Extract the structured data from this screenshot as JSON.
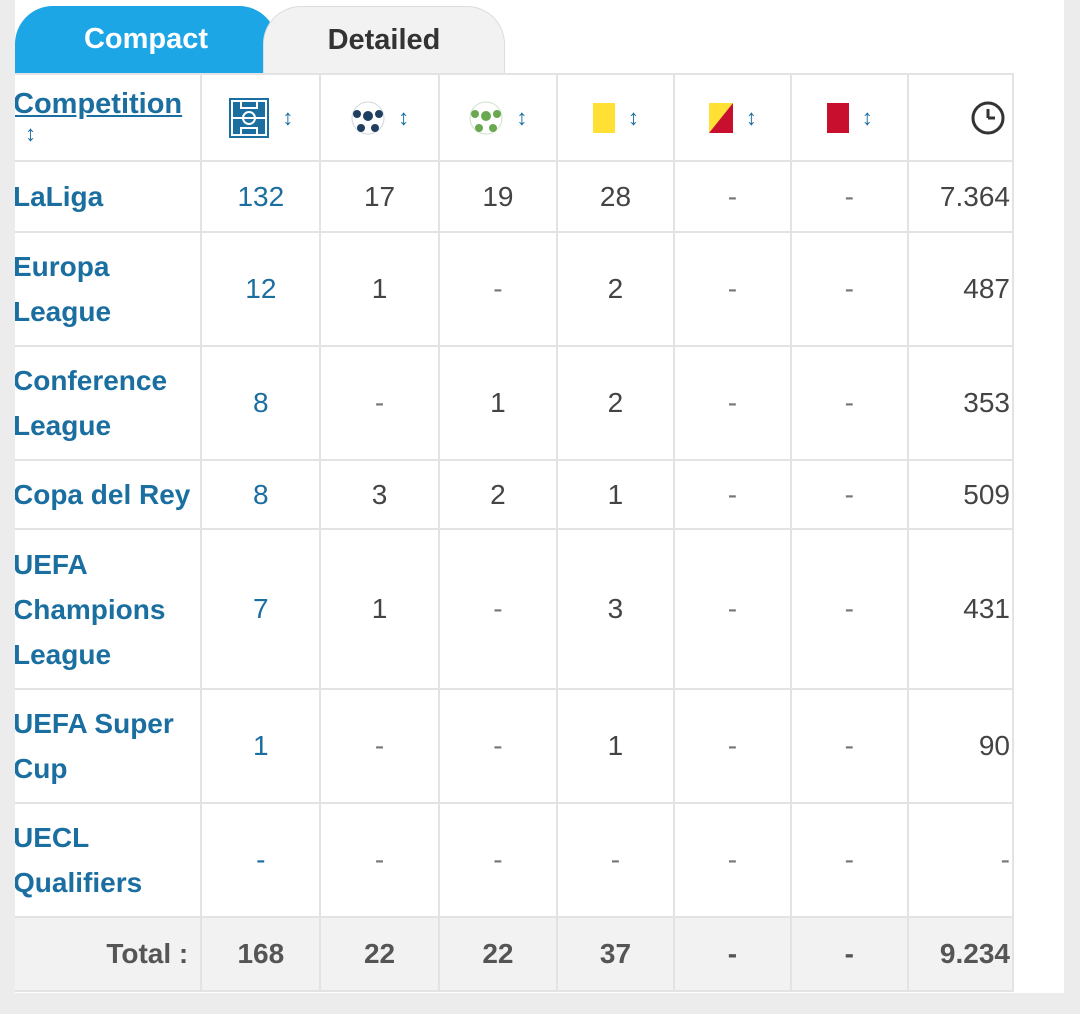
{
  "tabs": {
    "compact": "Compact",
    "detailed": "Detailed"
  },
  "header": {
    "competition": "Competition",
    "sort_glyph": "↕",
    "columns": [
      {
        "icon": "pitch-appearances-icon"
      },
      {
        "icon": "goals-ball-icon"
      },
      {
        "icon": "assists-ball-icon"
      },
      {
        "icon": "yellow-card-icon"
      },
      {
        "icon": "second-yellow-card-icon"
      },
      {
        "icon": "red-card-icon"
      },
      {
        "icon": "clock-minutes-icon"
      }
    ]
  },
  "rows": [
    {
      "competition": "LaLiga",
      "apps": "132",
      "goals": "17",
      "assists": "19",
      "yellow": "28",
      "second_yellow": "-",
      "red": "-",
      "minutes": "7.364"
    },
    {
      "competition": "Europa League",
      "apps": "12",
      "goals": "1",
      "assists": "-",
      "yellow": "2",
      "second_yellow": "-",
      "red": "-",
      "minutes": "487"
    },
    {
      "competition": "Conference League",
      "apps": "8",
      "goals": "-",
      "assists": "1",
      "yellow": "2",
      "second_yellow": "-",
      "red": "-",
      "minutes": "353"
    },
    {
      "competition": "Copa del Rey",
      "apps": "8",
      "goals": "3",
      "assists": "2",
      "yellow": "1",
      "second_yellow": "-",
      "red": "-",
      "minutes": "509"
    },
    {
      "competition": "UEFA Champions League",
      "apps": "7",
      "goals": "1",
      "assists": "-",
      "yellow": "3",
      "second_yellow": "-",
      "red": "-",
      "minutes": "431"
    },
    {
      "competition": "UEFA Super Cup",
      "apps": "1",
      "goals": "-",
      "assists": "-",
      "yellow": "1",
      "second_yellow": "-",
      "red": "-",
      "minutes": "90"
    },
    {
      "competition": "UECL Qualifiers",
      "apps": "-",
      "goals": "-",
      "assists": "-",
      "yellow": "-",
      "second_yellow": "-",
      "red": "-",
      "minutes": "-"
    }
  ],
  "total": {
    "label": "Total :",
    "apps": "168",
    "goals": "22",
    "assists": "22",
    "yellow": "37",
    "second_yellow": "-",
    "red": "-",
    "minutes": "9.234"
  },
  "colors": {
    "tab_active": "#1da6e6",
    "link": "#1a6ea0",
    "yellow_card": "#ffe033",
    "red_card": "#c8102e"
  }
}
